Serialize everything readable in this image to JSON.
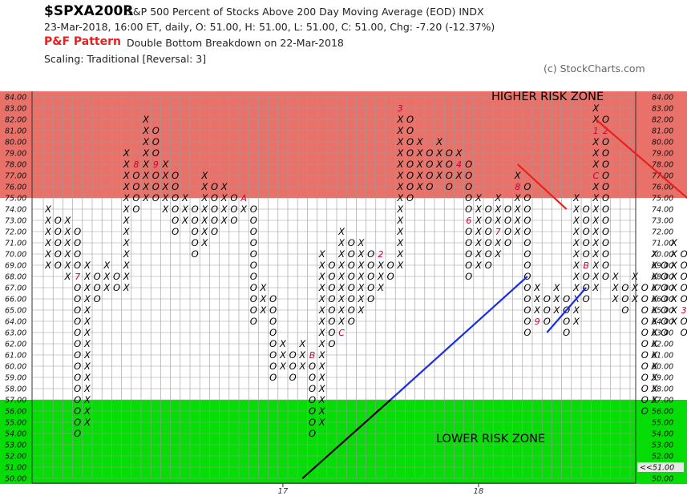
{
  "header": {
    "ticker": "$SPXA200R",
    "description": "S&P 500 Percent of Stocks Above 200 Day Moving Average (EOD)  INDX",
    "quote": "23-Mar-2018, 16:00 ET, daily, O: 51.00, H: 51.00, L: 51.00, C: 51.00, Chg: -7.20 (-12.37%)",
    "pattern_label": "P&F Pattern",
    "pattern_text": "Double Bottom Breakdown on 22-Mar-2018",
    "scaling": "Scaling: Traditional [Reversal: 3]",
    "credit": "(c) StockCharts.com"
  },
  "colors": {
    "high_zone": "#e8726a",
    "low_zone": "#06dd06",
    "grid": "#9a9a9a",
    "x_mark": "#000000",
    "o_mark": "#000000",
    "month_mark": "#cc0033",
    "red_line": "#e8201e",
    "blue_line": "#1a2ee6",
    "black_line": "#000000",
    "current_label_bg": "#e9e9e9"
  },
  "chart_data": {
    "type": "point-and-figure",
    "box_size": 1,
    "reversal": 3,
    "y_range": [
      50,
      84
    ],
    "y_ticks": [
      "84.00",
      "83.00",
      "82.00",
      "81.00",
      "80.00",
      "79.00",
      "78.00",
      "77.00",
      "76.00",
      "75.00",
      "74.00",
      "73.00",
      "72.00",
      "71.00",
      "70.00",
      "69.00",
      "68.00",
      "67.00",
      "66.00",
      "65.00",
      "64.00",
      "63.00",
      "62.00",
      "61.00",
      "60.00",
      "59.00",
      "58.00",
      "57.00",
      "56.00",
      "55.00",
      "54.00",
      "53.00",
      "52.00",
      "51.00",
      "50.00"
    ],
    "current_value_label": "<<51.00",
    "x_labels": [
      {
        "col": 24,
        "label": "17"
      },
      {
        "col": 44,
        "label": "18"
      }
    ],
    "zones": [
      {
        "label": "HIGHER RISK ZONE",
        "from": 75,
        "to": 84
      },
      {
        "label": "LOWER RISK ZONE",
        "from": 50,
        "to": 57
      }
    ],
    "columns": [
      {
        "col": 0,
        "type": "X",
        "low": 69,
        "high": 74
      },
      {
        "col": 1,
        "type": "O",
        "low": 69,
        "high": 73
      },
      {
        "col": 2,
        "type": "X",
        "low": 68,
        "high": 73
      },
      {
        "col": 3,
        "type": "O",
        "low": 54,
        "high": 72
      },
      {
        "col": 4,
        "type": "X",
        "low": 55,
        "high": 69
      },
      {
        "col": 5,
        "type": "O",
        "low": 66,
        "high": 68
      },
      {
        "col": 6,
        "type": "X",
        "low": 67,
        "high": 69
      },
      {
        "col": 7,
        "type": "O",
        "low": 67,
        "high": 68
      },
      {
        "col": 8,
        "type": "X",
        "low": 67,
        "high": 79
      },
      {
        "col": 9,
        "type": "O",
        "low": 74,
        "high": 78
      },
      {
        "col": 10,
        "type": "X",
        "low": 75,
        "high": 82
      },
      {
        "col": 11,
        "type": "O",
        "low": 75,
        "high": 81
      },
      {
        "col": 12,
        "type": "X",
        "low": 74,
        "high": 78
      },
      {
        "col": 13,
        "type": "O",
        "low": 72,
        "high": 77
      },
      {
        "col": 14,
        "type": "X",
        "low": 73,
        "high": 75
      },
      {
        "col": 15,
        "type": "O",
        "low": 70,
        "high": 74
      },
      {
        "col": 16,
        "type": "X",
        "low": 71,
        "high": 77
      },
      {
        "col": 17,
        "type": "O",
        "low": 72,
        "high": 76
      },
      {
        "col": 18,
        "type": "X",
        "low": 73,
        "high": 76
      },
      {
        "col": 19,
        "type": "O",
        "low": 73,
        "high": 75
      },
      {
        "col": 20,
        "type": "X",
        "low": 74,
        "high": 75
      },
      {
        "col": 21,
        "type": "O",
        "low": 64,
        "high": 74
      },
      {
        "col": 22,
        "type": "X",
        "low": 65,
        "high": 67
      },
      {
        "col": 23,
        "type": "O",
        "low": 59,
        "high": 66
      },
      {
        "col": 24,
        "type": "X",
        "low": 60,
        "high": 62
      },
      {
        "col": 25,
        "type": "O",
        "low": 59,
        "high": 61
      },
      {
        "col": 26,
        "type": "X",
        "low": 60,
        "high": 62
      },
      {
        "col": 27,
        "type": "O",
        "low": 54,
        "high": 61
      },
      {
        "col": 28,
        "type": "X",
        "low": 55,
        "high": 70
      },
      {
        "col": 29,
        "type": "O",
        "low": 62,
        "high": 69
      },
      {
        "col": 30,
        "type": "X",
        "low": 63,
        "high": 72
      },
      {
        "col": 31,
        "type": "O",
        "low": 64,
        "high": 71
      },
      {
        "col": 32,
        "type": "X",
        "low": 65,
        "high": 71
      },
      {
        "col": 33,
        "type": "O",
        "low": 66,
        "high": 70
      },
      {
        "col": 34,
        "type": "X",
        "low": 67,
        "high": 70
      },
      {
        "col": 35,
        "type": "O",
        "low": 68,
        "high": 69
      },
      {
        "col": 36,
        "type": "X",
        "low": 69,
        "high": 83
      },
      {
        "col": 37,
        "type": "O",
        "low": 75,
        "high": 82
      },
      {
        "col": 38,
        "type": "X",
        "low": 76,
        "high": 80
      },
      {
        "col": 39,
        "type": "O",
        "low": 76,
        "high": 79
      },
      {
        "col": 40,
        "type": "X",
        "low": 77,
        "high": 80
      },
      {
        "col": 41,
        "type": "O",
        "low": 76,
        "high": 79
      },
      {
        "col": 42,
        "type": "X",
        "low": 77,
        "high": 79
      },
      {
        "col": 43,
        "type": "O",
        "low": 68,
        "high": 78
      },
      {
        "col": 44,
        "type": "X",
        "low": 69,
        "high": 75
      },
      {
        "col": 45,
        "type": "O",
        "low": 69,
        "high": 74
      },
      {
        "col": 46,
        "type": "X",
        "low": 70,
        "high": 75
      },
      {
        "col": 47,
        "type": "O",
        "low": 71,
        "high": 74
      },
      {
        "col": 48,
        "type": "X",
        "low": 72,
        "high": 77
      },
      {
        "col": 49,
        "type": "O",
        "low": 63,
        "high": 76
      },
      {
        "col": 50,
        "type": "X",
        "low": 64,
        "high": 67
      },
      {
        "col": 51,
        "type": "O",
        "low": 64,
        "high": 66
      },
      {
        "col": 52,
        "type": "X",
        "low": 65,
        "high": 67
      },
      {
        "col": 53,
        "type": "O",
        "low": 63,
        "high": 66
      },
      {
        "col": 54,
        "type": "X",
        "low": 64,
        "high": 75
      },
      {
        "col": 55,
        "type": "O",
        "low": 66,
        "high": 74
      },
      {
        "col": 56,
        "type": "X",
        "low": 67,
        "high": 83
      },
      {
        "col": 57,
        "type": "O",
        "low": 68,
        "high": 82
      },
      {
        "col": 58,
        "type": "X",
        "low": 66,
        "high": 68
      },
      {
        "col": 59,
        "type": "O",
        "low": 65,
        "high": 67
      },
      {
        "col": 60,
        "type": "X",
        "low": 66,
        "high": 68
      },
      {
        "col": 61,
        "type": "O",
        "low": 56,
        "high": 67
      },
      {
        "col": 62,
        "type": "X",
        "low": 57,
        "high": 70
      },
      {
        "col": 63,
        "type": "O",
        "low": 63,
        "high": 69
      },
      {
        "col": 64,
        "type": "X",
        "low": 64,
        "high": 71
      },
      {
        "col": 65,
        "type": "O",
        "low": 63,
        "high": 70
      },
      {
        "col": 66,
        "type": "X",
        "low": 64,
        "high": 70
      },
      {
        "col": 67,
        "type": "O",
        "low": 51,
        "high": 69
      }
    ],
    "month_markers": [
      {
        "col": 3,
        "value": 68,
        "label": "7"
      },
      {
        "col": 9,
        "value": 78,
        "label": "8"
      },
      {
        "col": 11,
        "value": 78,
        "label": "9"
      },
      {
        "col": 20,
        "value": 75,
        "label": "A"
      },
      {
        "col": 27,
        "value": 61,
        "label": "B"
      },
      {
        "col": 30,
        "value": 63,
        "label": "C"
      },
      {
        "col": 34,
        "value": 70,
        "label": "2"
      },
      {
        "col": 35,
        "value": 66,
        "label": "1"
      },
      {
        "col": 36,
        "value": 83,
        "label": "3"
      },
      {
        "col": 42,
        "value": 78,
        "label": "4"
      },
      {
        "col": 42,
        "value": 75,
        "label": "5"
      },
      {
        "col": 43,
        "value": 73,
        "label": "6"
      },
      {
        "col": 46,
        "value": 72,
        "label": "7"
      },
      {
        "col": 48,
        "value": 76,
        "label": "8"
      },
      {
        "col": 50,
        "value": 64,
        "label": "9"
      },
      {
        "col": 53,
        "value": 74,
        "label": "A"
      },
      {
        "col": 55,
        "value": 69,
        "label": "B"
      },
      {
        "col": 56,
        "value": 77,
        "label": "C"
      },
      {
        "col": 56,
        "value": 81,
        "label": "1"
      },
      {
        "col": 57,
        "value": 81,
        "label": "2"
      },
      {
        "col": 65,
        "value": 65,
        "label": "3"
      },
      {
        "col": 67,
        "value": 58,
        "label": "O"
      }
    ],
    "trend_lines": [
      {
        "color": "red_line",
        "from": [
          48,
          78
        ],
        "to": [
          53,
          74
        ]
      },
      {
        "color": "red_line",
        "from": [
          56,
          82
        ],
        "to": [
          68,
          73
        ]
      },
      {
        "color": "blue_line",
        "from": [
          49,
          68
        ],
        "to": [
          35,
          57
        ]
      },
      {
        "color": "blue_line",
        "from": [
          51,
          63
        ],
        "to": [
          55,
          67
        ]
      },
      {
        "color": "black_line",
        "from": [
          35,
          57
        ],
        "to": [
          26,
          50
        ]
      }
    ]
  }
}
